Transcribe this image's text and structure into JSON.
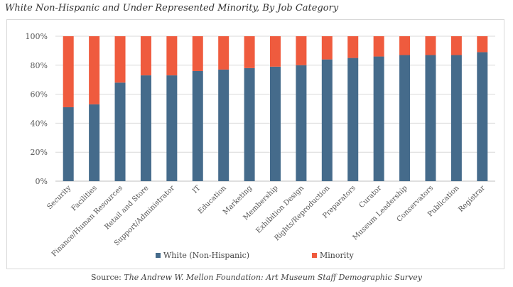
{
  "chart_data": {
    "type": "bar",
    "stacked": true,
    "title": "White Non-Hispanic and Under Represented Minority, By Job Category",
    "categories": [
      "Security",
      "Facilities",
      "Finance/Human Resources",
      "Retail and Store",
      "Support/Administrator",
      "IT",
      "Education",
      "Marketing",
      "Membership",
      "Exhibition Design",
      "Rights/Reproduction",
      "Preparators",
      "Curator",
      "Museum Leadership",
      "Conservators",
      "Publication",
      "Registrar"
    ],
    "series": [
      {
        "name": "White (Non-Hispanic)",
        "color": "#456b8b",
        "values": [
          51,
          53,
          68,
          73,
          73,
          76,
          77,
          78,
          79,
          80,
          84,
          85,
          86,
          87,
          87,
          87,
          89
        ]
      },
      {
        "name": "Minority",
        "color": "#ef5b3e",
        "values": [
          49,
          47,
          32,
          27,
          27,
          24,
          23,
          22,
          21,
          20,
          16,
          15,
          14,
          13,
          13,
          13,
          11
        ]
      }
    ],
    "ylim": [
      0,
      100
    ],
    "yticks": [
      "0%",
      "20%",
      "40%",
      "60%",
      "80%",
      "100%"
    ],
    "grid": true,
    "legend": "bottom"
  },
  "source": {
    "prefix": "Source: ",
    "title": "The Andrew W. Mellon Foundation: Art Museum Staff Demographic Survey"
  }
}
